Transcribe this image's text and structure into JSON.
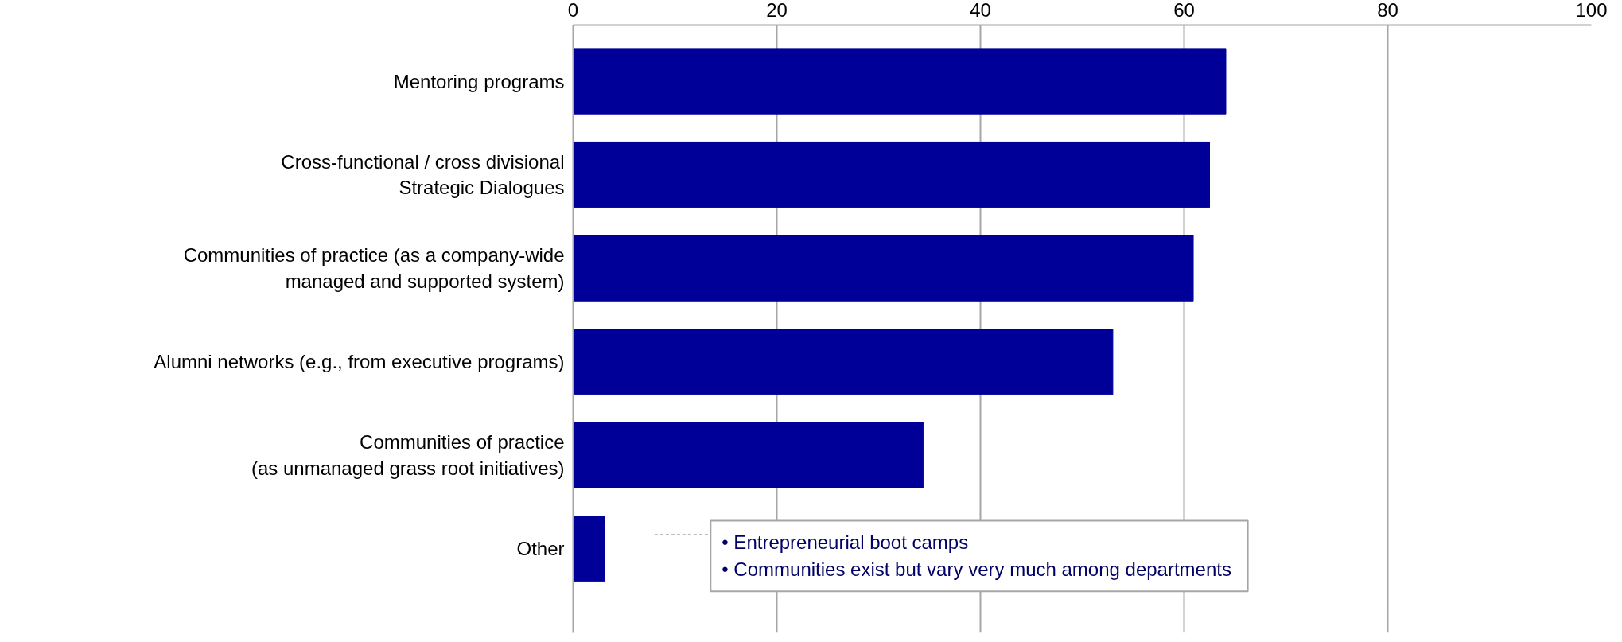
{
  "chart_data": {
    "type": "bar",
    "orientation": "horizontal",
    "categories": [
      "Mentoring programs",
      "Cross-functional / cross divisional\nStrategic Dialogues",
      "Communities of practice (as a company-wide\nmanaged and supported system)",
      "Alumni networks (e.g., from executive programs)",
      "Communities of practice\n(as unmanaged grass root initiatives)",
      "Other"
    ],
    "values": [
      64.1,
      62.5,
      60.9,
      53.0,
      34.4,
      3.1
    ],
    "color": "#000099",
    "xlim": [
      0,
      100
    ],
    "xticks": [
      0,
      20,
      40,
      60,
      80,
      100
    ],
    "grid": "x",
    "annotations": [
      "• Entrepreneurial boot camps\n• Communities exist but vary very much among  departments"
    ]
  }
}
